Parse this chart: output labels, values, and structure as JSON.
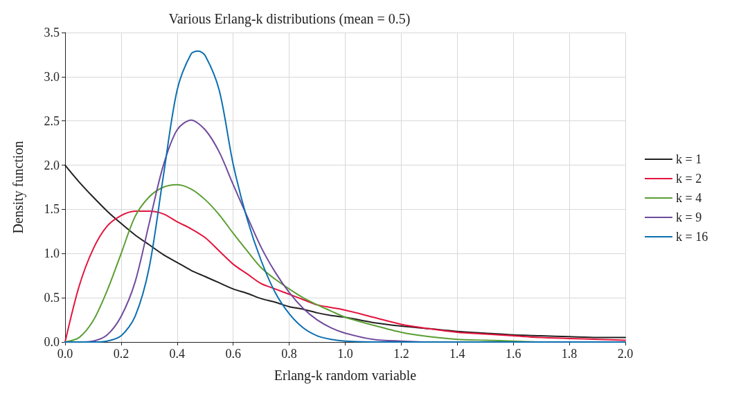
{
  "chart_data": {
    "type": "line",
    "title": "Various Erlang-k distributions (mean = 0.5)",
    "xlabel": "Erlang-k random variable",
    "ylabel": "Density function",
    "x": [
      0,
      0.05,
      0.1,
      0.15,
      0.2,
      0.25,
      0.3,
      0.35,
      0.4,
      0.45,
      0.5,
      0.55,
      0.6,
      0.65,
      0.7,
      0.75,
      0.8,
      0.85,
      0.9,
      0.95,
      1.0,
      1.1,
      1.2,
      1.3,
      1.4,
      1.5,
      1.6,
      1.7,
      1.8,
      1.9,
      2.0
    ],
    "series": [
      {
        "name": "k = 1",
        "color": "#231f20",
        "values": [
          2,
          1.81,
          1.64,
          1.48,
          1.34,
          1.21,
          1.1,
          0.99,
          0.9,
          0.81,
          0.74,
          0.67,
          0.6,
          0.55,
          0.49,
          0.45,
          0.4,
          0.37,
          0.33,
          0.3,
          0.28,
          0.22,
          0.18,
          0.15,
          0.12,
          0.1,
          0.08,
          0.07,
          0.06,
          0.05,
          0.05
        ]
      },
      {
        "name": "k = 2",
        "color": "#e4133c",
        "values": [
          0,
          0.63,
          1.05,
          1.31,
          1.43,
          1.48,
          1.48,
          1.45,
          1.36,
          1.28,
          1.18,
          1.03,
          0.88,
          0.77,
          0.66,
          0.6,
          0.54,
          0.48,
          0.42,
          0.39,
          0.36,
          0.28,
          0.2,
          0.15,
          0.11,
          0.09,
          0.07,
          0.05,
          0.04,
          0.03,
          0.02
        ]
      },
      {
        "name": "k = 4",
        "color": "#5a9e33",
        "values": [
          0,
          0.05,
          0.24,
          0.58,
          1.0,
          1.42,
          1.64,
          1.75,
          1.78,
          1.73,
          1.61,
          1.44,
          1.23,
          1.03,
          0.84,
          0.71,
          0.6,
          0.5,
          0.42,
          0.35,
          0.28,
          0.19,
          0.11,
          0.06,
          0.03,
          0.02,
          0.01,
          0,
          0,
          null,
          null
        ]
      },
      {
        "name": "k = 9",
        "color": "#6f4a9c",
        "values": [
          0,
          0,
          0.01,
          0.08,
          0.29,
          0.68,
          1.34,
          1.99,
          2.4,
          2.51,
          2.4,
          2.15,
          1.78,
          1.42,
          1.07,
          0.79,
          0.56,
          0.38,
          0.25,
          0.16,
          0.1,
          0.03,
          0.01,
          0,
          0,
          null,
          null,
          null,
          null,
          null,
          null
        ]
      },
      {
        "name": "k = 16",
        "color": "#0b6fb0",
        "x": [
          0,
          0.05,
          0.1,
          0.15,
          0.2,
          0.25,
          0.3,
          0.35,
          0.4,
          0.45,
          0.475,
          0.5,
          0.55,
          0.6,
          0.65,
          0.7,
          0.75,
          0.8,
          0.85,
          0.9,
          0.95,
          1.0,
          1.1,
          1.2,
          1.3,
          1.4,
          1.5,
          1.6,
          1.7,
          1.8,
          1.9,
          2.0
        ],
        "values": [
          0,
          0,
          0,
          0.01,
          0.07,
          0.29,
          0.84,
          1.86,
          2.85,
          3.26,
          3.29,
          3.24,
          2.85,
          2.01,
          1.39,
          0.92,
          0.56,
          0.32,
          0.16,
          0.07,
          0.03,
          0.01,
          0,
          0,
          0,
          0,
          0,
          0,
          0,
          0,
          0,
          0
        ]
      }
    ],
    "xlim": [
      0,
      2
    ],
    "xticks": [
      {
        "value": 0,
        "label": "0.0"
      },
      {
        "value": 0.2,
        "label": "0.2"
      },
      {
        "value": 0.4,
        "label": "0.4"
      },
      {
        "value": 0.6,
        "label": "0.6"
      },
      {
        "value": 0.8,
        "label": "0.8"
      },
      {
        "value": 1,
        "label": "1.0"
      },
      {
        "value": 1.2,
        "label": "1.2"
      },
      {
        "value": 1.4,
        "label": "1.4"
      },
      {
        "value": 1.6,
        "label": "1.6"
      },
      {
        "value": 1.8,
        "label": "1.8"
      },
      {
        "value": 2,
        "label": "2.0"
      }
    ],
    "ylim": [
      0,
      3.5
    ],
    "yticks": [
      {
        "value": 0,
        "label": "0.0"
      },
      {
        "value": 0.5,
        "label": "0.5"
      },
      {
        "value": 1,
        "label": "1.0"
      },
      {
        "value": 1.5,
        "label": "1.5"
      },
      {
        "value": 2,
        "label": "2.0"
      },
      {
        "value": 2.5,
        "label": "2.5"
      },
      {
        "value": 3,
        "label": "3.0"
      },
      {
        "value": 3.5,
        "label": "3.5"
      }
    ],
    "grid": true,
    "legend": "right",
    "marker": "none",
    "line_style": "solid"
  }
}
